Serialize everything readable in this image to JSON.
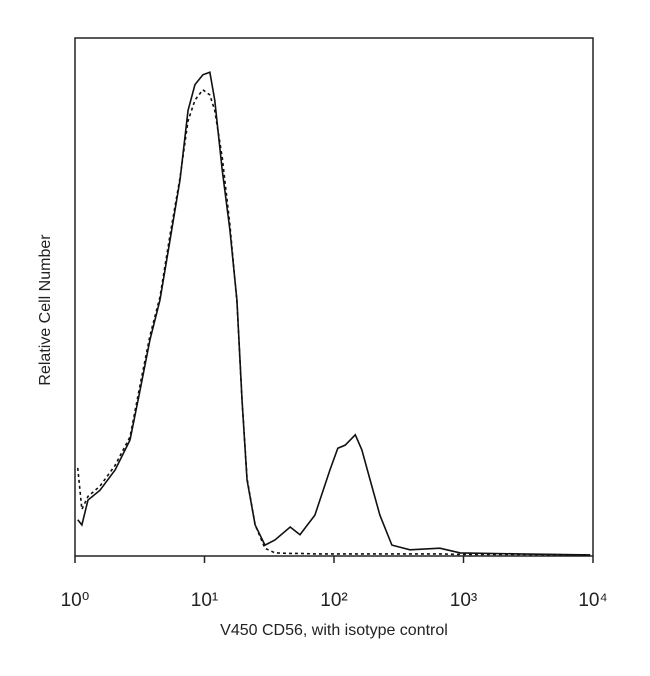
{
  "chart_data": {
    "type": "line",
    "xlabel": "V450 CD56, with isotype control",
    "ylabel": "Relative Cell Number",
    "xscale": "log",
    "xlim": [
      1,
      10000
    ],
    "xticks": [
      {
        "value": 1,
        "label": "10⁰"
      },
      {
        "value": 10,
        "label": "10¹"
      },
      {
        "value": 100,
        "label": "10²"
      },
      {
        "value": 1000,
        "label": "10³"
      },
      {
        "value": 10000,
        "label": "10⁴"
      }
    ],
    "ylim": [
      0,
      100
    ],
    "grid": false,
    "x": [
      1.05,
      1.13,
      1.26,
      1.56,
      2.04,
      2.66,
      3.18,
      3.79,
      4.53,
      5.42,
      6.47,
      7.46,
      8.44,
      9.72,
      11.0,
      12.0,
      13.7,
      15.7,
      17.8,
      19.5,
      21.3,
      24.6,
      29.3,
      35.0,
      45.9,
      54.6,
      71.2,
      93.0,
      107,
      122,
      146,
      164,
      190,
      226,
      280,
      386,
      657,
      944,
      2700,
      9500
    ],
    "series": [
      {
        "color": "#111111",
        "linestyle": "solid",
        "values": [
          7,
          6,
          10.8,
          12.7,
          16.6,
          22.4,
          32,
          41.7,
          49.4,
          61,
          72.6,
          86,
          91,
          92.9,
          93.4,
          88,
          74.5,
          63,
          49.4,
          30,
          14.7,
          6,
          2.1,
          3.1,
          5.6,
          4.1,
          7.9,
          16.6,
          20.8,
          21.4,
          23.4,
          20.5,
          14.7,
          7.9,
          2.1,
          1.2,
          1.5,
          0.6,
          0.4,
          0.2
        ]
      },
      {
        "color": "#111111",
        "linestyle": "dashed",
        "values": [
          17,
          9,
          11.5,
          13.5,
          17.5,
          23,
          33,
          42.5,
          50,
          62,
          73,
          84,
          88,
          90,
          89,
          86,
          77,
          64,
          49,
          30,
          15,
          6,
          1.5,
          0.6,
          0.5,
          0.5,
          0.4,
          0.4,
          0.4,
          0.4,
          0.4,
          0.4,
          0.4,
          0.4,
          0.4,
          0.4,
          0.4,
          0.3,
          0.3,
          0.2
        ]
      }
    ]
  }
}
